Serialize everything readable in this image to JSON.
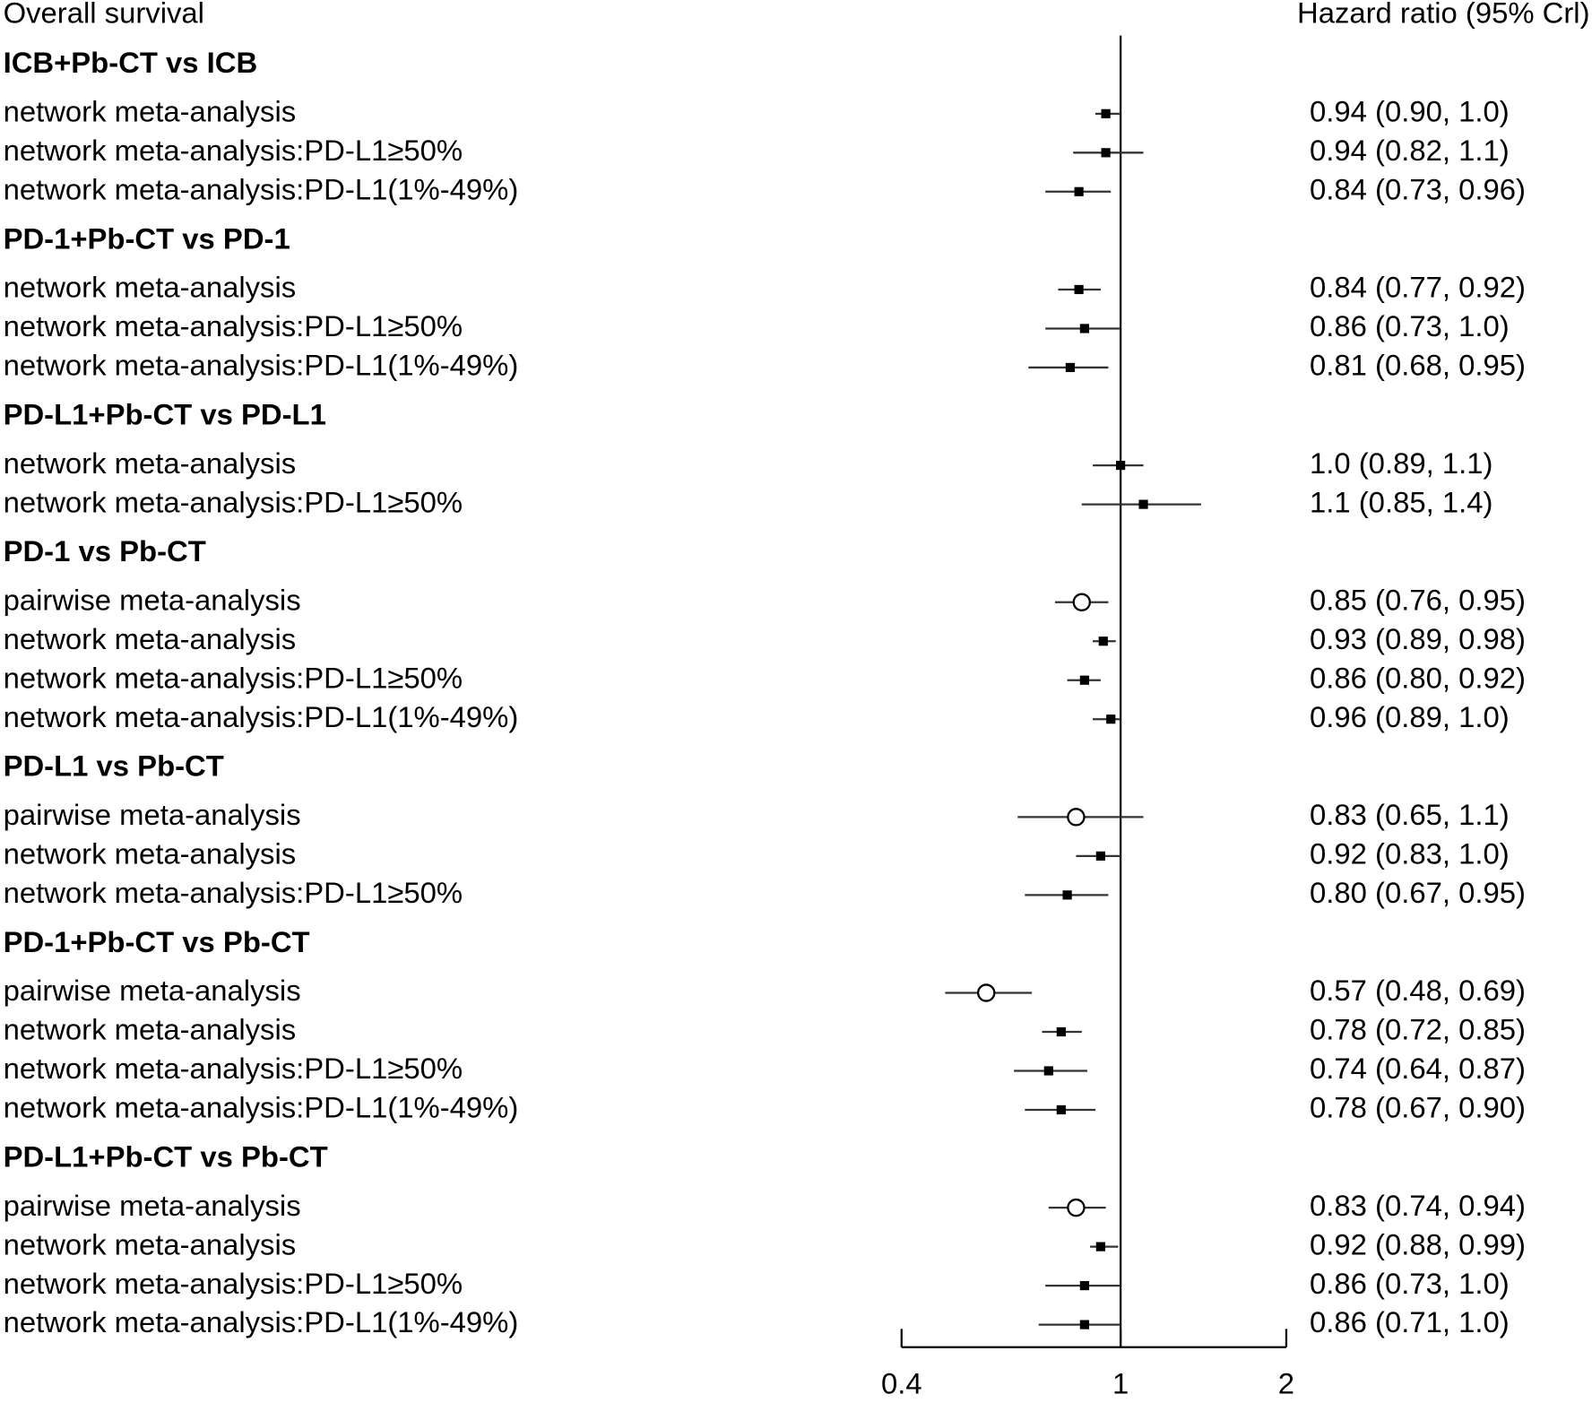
{
  "chart_data": {
    "type": "forest",
    "title": "Overall survival",
    "value_header": "Hazard ratio (95% Crl)",
    "xlim": [
      0.4,
      2
    ],
    "xticks": [
      0.4,
      1,
      2
    ],
    "log_x": true,
    "color": "#000000",
    "groups": [
      {
        "name": "ICB+Pb-CT vs ICB",
        "rows": [
          {
            "label": "network meta-analysis",
            "marker": "square",
            "value": 0.94,
            "lower": 0.9,
            "upper": 1.0,
            "value_label": "0.94 (0.90, 1.0)"
          },
          {
            "label": "network meta-analysis:PD-L1≥50%",
            "marker": "square",
            "value": 0.94,
            "lower": 0.82,
            "upper": 1.1,
            "value_label": "0.94 (0.82, 1.1)"
          },
          {
            "label": "network meta-analysis:PD-L1(1%-49%)",
            "marker": "square",
            "value": 0.84,
            "lower": 0.73,
            "upper": 0.96,
            "value_label": "0.84 (0.73, 0.96)"
          }
        ]
      },
      {
        "name": "PD-1+Pb-CT vs PD-1",
        "rows": [
          {
            "label": "network meta-analysis",
            "marker": "square",
            "value": 0.84,
            "lower": 0.77,
            "upper": 0.92,
            "value_label": "0.84 (0.77, 0.92)"
          },
          {
            "label": "network meta-analysis:PD-L1≥50%",
            "marker": "square",
            "value": 0.86,
            "lower": 0.73,
            "upper": 1.0,
            "value_label": "0.86 (0.73, 1.0)"
          },
          {
            "label": "network meta-analysis:PD-L1(1%-49%)",
            "marker": "square",
            "value": 0.81,
            "lower": 0.68,
            "upper": 0.95,
            "value_label": "0.81 (0.68, 0.95)"
          }
        ]
      },
      {
        "name": "PD-L1+Pb-CT vs PD-L1",
        "rows": [
          {
            "label": "network meta-analysis",
            "marker": "square",
            "value": 1.0,
            "lower": 0.89,
            "upper": 1.1,
            "value_label": "1.0 (0.89, 1.1)"
          },
          {
            "label": "network meta-analysis:PD-L1≥50%",
            "marker": "square",
            "value": 1.1,
            "lower": 0.85,
            "upper": 1.4,
            "value_label": "1.1 (0.85, 1.4)"
          }
        ]
      },
      {
        "name": "PD-1 vs Pb-CT",
        "rows": [
          {
            "label": "pairwise meta-analysis",
            "marker": "circle",
            "value": 0.85,
            "lower": 0.76,
            "upper": 0.95,
            "value_label": "0.85 (0.76, 0.95)"
          },
          {
            "label": "network meta-analysis",
            "marker": "square",
            "value": 0.93,
            "lower": 0.89,
            "upper": 0.98,
            "value_label": "0.93 (0.89, 0.98)"
          },
          {
            "label": "network meta-analysis:PD-L1≥50%",
            "marker": "square",
            "value": 0.86,
            "lower": 0.8,
            "upper": 0.92,
            "value_label": "0.86 (0.80, 0.92)"
          },
          {
            "label": "network meta-analysis:PD-L1(1%-49%)",
            "marker": "square",
            "value": 0.96,
            "lower": 0.89,
            "upper": 1.0,
            "value_label": "0.96 (0.89, 1.0)"
          }
        ]
      },
      {
        "name": "PD-L1 vs Pb-CT",
        "rows": [
          {
            "label": "pairwise meta-analysis",
            "marker": "circle",
            "value": 0.83,
            "lower": 0.65,
            "upper": 1.1,
            "value_label": "0.83 (0.65, 1.1)"
          },
          {
            "label": "network meta-analysis",
            "marker": "square",
            "value": 0.92,
            "lower": 0.83,
            "upper": 1.0,
            "value_label": "0.92 (0.83, 1.0)"
          },
          {
            "label": "network meta-analysis:PD-L1≥50%",
            "marker": "square",
            "value": 0.8,
            "lower": 0.67,
            "upper": 0.95,
            "value_label": "0.80 (0.67, 0.95)"
          }
        ]
      },
      {
        "name": "PD-1+Pb-CT vs Pb-CT",
        "rows": [
          {
            "label": "pairwise meta-analysis",
            "marker": "circle",
            "value": 0.57,
            "lower": 0.48,
            "upper": 0.69,
            "value_label": "0.57 (0.48, 0.69)"
          },
          {
            "label": "network meta-analysis",
            "marker": "square",
            "value": 0.78,
            "lower": 0.72,
            "upper": 0.85,
            "value_label": "0.78 (0.72, 0.85)"
          },
          {
            "label": "network meta-analysis:PD-L1≥50%",
            "marker": "square",
            "value": 0.74,
            "lower": 0.64,
            "upper": 0.87,
            "value_label": "0.74 (0.64, 0.87)"
          },
          {
            "label": "network meta-analysis:PD-L1(1%-49%)",
            "marker": "square",
            "value": 0.78,
            "lower": 0.67,
            "upper": 0.9,
            "value_label": "0.78 (0.67, 0.90)"
          }
        ]
      },
      {
        "name": "PD-L1+Pb-CT vs Pb-CT",
        "rows": [
          {
            "label": "pairwise meta-analysis",
            "marker": "circle",
            "value": 0.83,
            "lower": 0.74,
            "upper": 0.94,
            "value_label": "0.83 (0.74, 0.94)"
          },
          {
            "label": "network meta-analysis",
            "marker": "square",
            "value": 0.92,
            "lower": 0.88,
            "upper": 0.99,
            "value_label": "0.92 (0.88, 0.99)"
          },
          {
            "label": "network meta-analysis:PD-L1≥50%",
            "marker": "square",
            "value": 0.86,
            "lower": 0.73,
            "upper": 1.0,
            "value_label": "0.86 (0.73, 1.0)"
          },
          {
            "label": "network meta-analysis:PD-L1(1%-49%)",
            "marker": "square",
            "value": 0.86,
            "lower": 0.71,
            "upper": 1.0,
            "value_label": "0.86 (0.71, 1.0)"
          }
        ]
      }
    ]
  }
}
